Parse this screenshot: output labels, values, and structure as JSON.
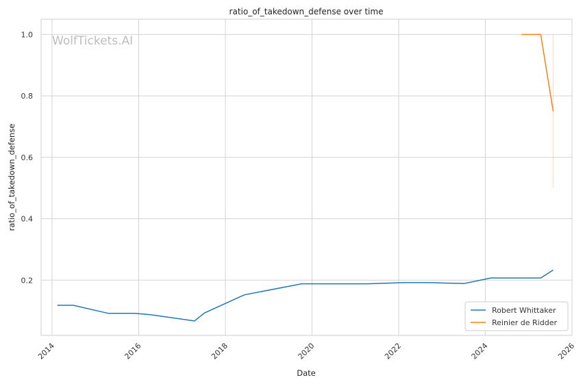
{
  "chart_data": {
    "type": "line",
    "title": "ratio_of_takedown_defense over time",
    "xlabel": "Date",
    "ylabel": "ratio_of_takedown_defense",
    "watermark": "WolfTickets.AI",
    "x_scale": "date",
    "xlim": [
      "2013-10-01",
      "2026-01-01"
    ],
    "ylim": [
      0.02,
      1.05
    ],
    "x_ticks": [
      "2014",
      "2016",
      "2018",
      "2020",
      "2022",
      "2024",
      "2026"
    ],
    "y_ticks": [
      "0.2",
      "0.4",
      "0.6",
      "0.8",
      "1.0"
    ],
    "grid": true,
    "legend_position": "bottom-right",
    "series": [
      {
        "name": "Robert Whittaker",
        "color": "#1f77b4",
        "x": [
          "2014-02-15",
          "2014-06-28",
          "2015-04-18",
          "2015-11-28",
          "2016-04-16",
          "2017-04-15",
          "2017-07-08",
          "2018-06-09",
          "2019-10-06",
          "2021-04-17",
          "2022-02-12",
          "2022-09-03",
          "2023-07-08",
          "2024-02-17",
          "2025-04-12",
          "2025-07-26"
        ],
        "y": [
          0.118,
          0.118,
          0.092,
          0.092,
          0.087,
          0.067,
          0.093,
          0.152,
          0.188,
          0.188,
          0.192,
          0.192,
          0.189,
          0.207,
          0.207,
          0.233
        ]
      },
      {
        "name": "Reinier de Ridder",
        "color": "#ff7f0e",
        "x": [
          "2024-11-02",
          "2025-04-12",
          "2025-07-26"
        ],
        "y": [
          1.0,
          1.0,
          0.75
        ],
        "band": {
          "x": "2025-07-26",
          "low": 0.5,
          "high": 1.0
        }
      }
    ]
  }
}
